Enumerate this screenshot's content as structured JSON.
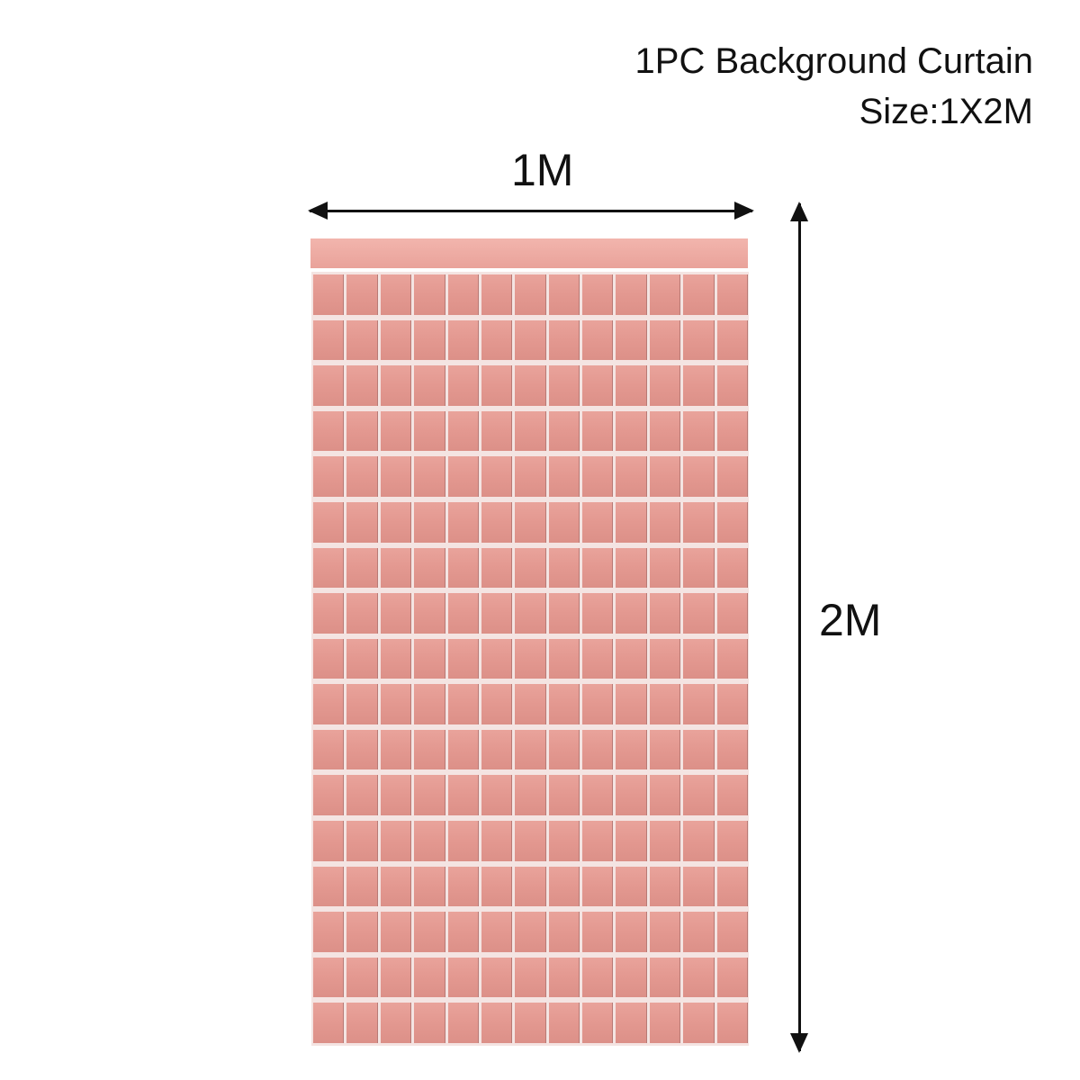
{
  "header": {
    "title": "1PC Background Curtain",
    "size": "Size:1X2M"
  },
  "dimensions": {
    "width_label": "1M",
    "height_label": "2M"
  },
  "colors": {
    "curtain": "#e39890",
    "arrow": "#111111"
  }
}
